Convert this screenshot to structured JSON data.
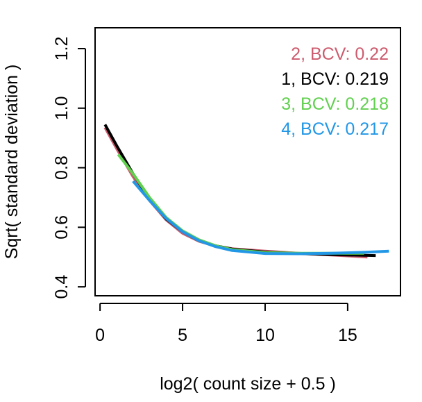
{
  "chart_data": {
    "type": "line",
    "xlabel": "log2( count size + 0.5 )",
    "ylabel": "Sqrt( standard deviation )",
    "xlim": [
      -0.3,
      18.2
    ],
    "ylim": [
      0.37,
      1.27
    ],
    "xticks": [
      0,
      5,
      10,
      15
    ],
    "xtick_labels": [
      "0",
      "5",
      "10",
      "15"
    ],
    "yticks": [
      0.4,
      0.6,
      0.8,
      1.0,
      1.2
    ],
    "ytick_labels": [
      "0.4",
      "0.6",
      "0.8",
      "1.0",
      "1.2"
    ],
    "legend_position": "top-right",
    "grid": false,
    "series": [
      {
        "name": "2, BCV: 0.22",
        "color": "#CD5B6E",
        "x": [
          0.3,
          1.0,
          2.0,
          3.0,
          4.0,
          5.0,
          6.0,
          7.0,
          8.0,
          10.0,
          12.0,
          14.0,
          16.2
        ],
        "y": [
          0.935,
          0.865,
          0.77,
          0.69,
          0.625,
          0.58,
          0.553,
          0.537,
          0.528,
          0.52,
          0.513,
          0.507,
          0.5
        ]
      },
      {
        "name": "1, BCV: 0.219",
        "color": "#000000",
        "x": [
          0.3,
          1.0,
          2.0,
          3.0,
          4.0,
          5.0,
          6.0,
          7.0,
          8.0,
          10.0,
          12.0,
          14.0,
          16.7
        ],
        "y": [
          0.945,
          0.875,
          0.78,
          0.695,
          0.628,
          0.585,
          0.555,
          0.538,
          0.527,
          0.517,
          0.512,
          0.508,
          0.505
        ]
      },
      {
        "name": "3, BCV: 0.218",
        "color": "#61D04F",
        "x": [
          1.1,
          2.0,
          3.0,
          4.0,
          5.0,
          6.0,
          7.0,
          8.0,
          10.0,
          12.0,
          14.0,
          16.0
        ],
        "y": [
          0.845,
          0.78,
          0.7,
          0.633,
          0.588,
          0.558,
          0.538,
          0.525,
          0.515,
          0.513,
          0.513,
          0.513
        ]
      },
      {
        "name": "4, BCV: 0.217",
        "color": "#2297E6",
        "x": [
          2.0,
          3.0,
          4.0,
          5.0,
          6.0,
          7.0,
          8.0,
          10.0,
          12.0,
          14.0,
          16.0,
          17.5
        ],
        "y": [
          0.755,
          0.69,
          0.63,
          0.585,
          0.555,
          0.535,
          0.522,
          0.512,
          0.511,
          0.513,
          0.516,
          0.52
        ]
      }
    ]
  }
}
